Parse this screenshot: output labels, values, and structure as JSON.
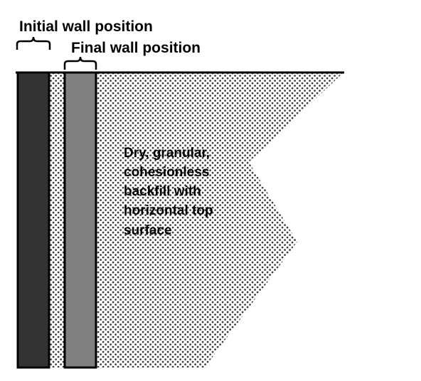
{
  "labels": {
    "initial_wall": "Initial wall position",
    "final_wall": "Final wall position",
    "backfill": [
      "Dry, granular,",
      "cohesionless",
      "backfill with",
      "horizontal top",
      "surface"
    ]
  },
  "colors": {
    "initial_wall_fill": "#333333",
    "final_wall_fill": "#808080",
    "soil_dots": "#3a3a3a",
    "line": "#000000",
    "background": "#ffffff"
  }
}
